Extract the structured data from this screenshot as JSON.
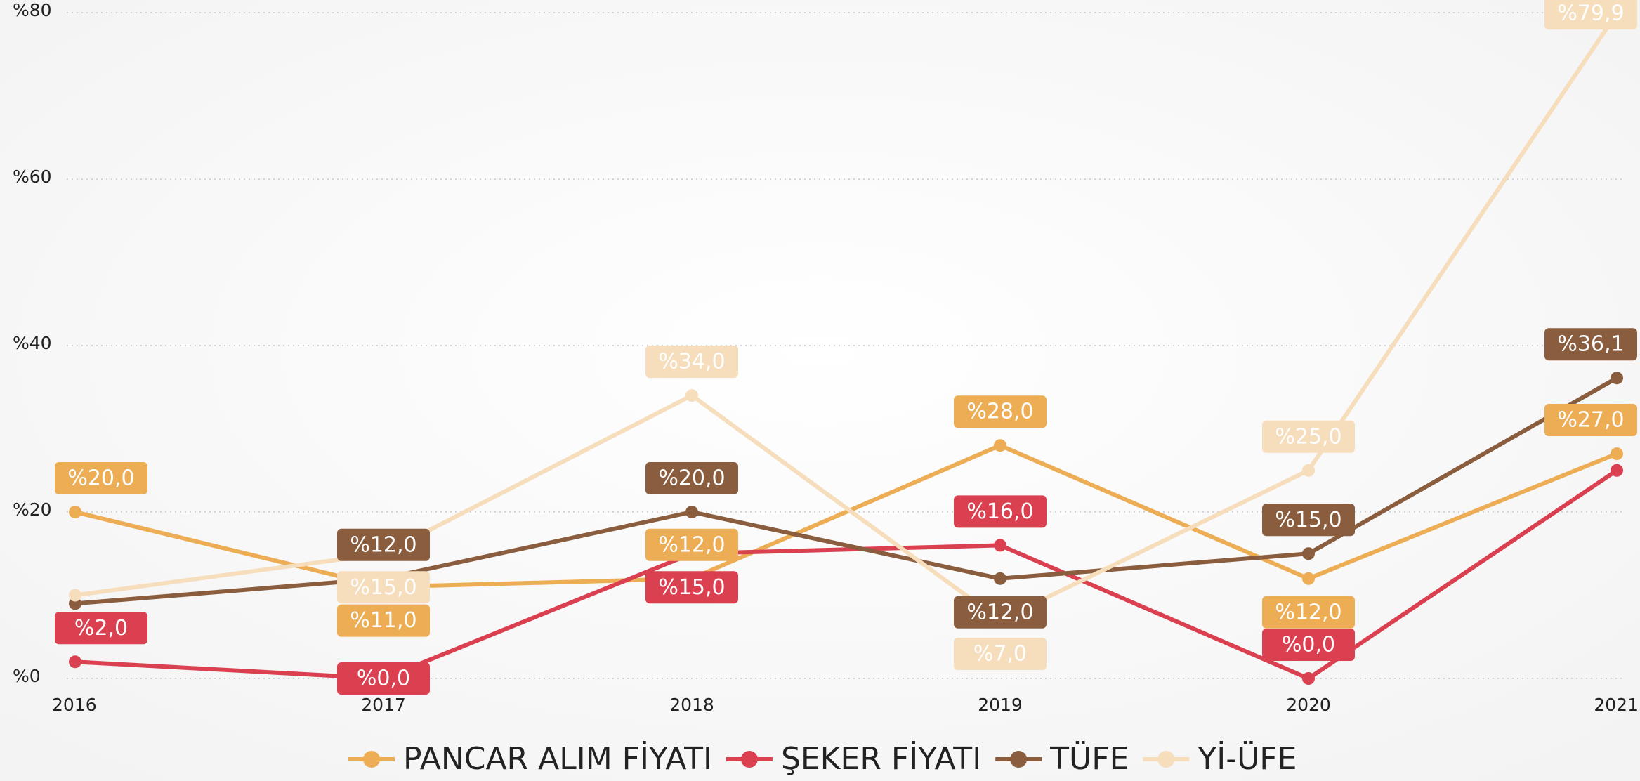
{
  "chart_data": {
    "type": "line",
    "x": [
      "2016",
      "2017",
      "2018",
      "2019",
      "2020",
      "2021"
    ],
    "ylim": [
      0,
      80
    ],
    "yticks": [
      {
        "value": 0,
        "label": "%0"
      },
      {
        "value": 20,
        "label": "%20"
      },
      {
        "value": 40,
        "label": "%40"
      },
      {
        "value": 60,
        "label": "%60"
      },
      {
        "value": 80,
        "label": "%80"
      }
    ],
    "grid": true,
    "legend": "bottom",
    "series": [
      {
        "name": "PANCAR ALIM FİYATI",
        "color": "#ECAD55",
        "values": [
          20,
          11,
          12,
          28,
          12,
          27
        ],
        "value_labels": [
          "%20,0",
          "%11,0",
          "%12,0",
          "%28,0",
          "%12,0",
          "%27,0"
        ]
      },
      {
        "name": "ŞEKER FİYATI",
        "color": "#DA4050",
        "values": [
          2,
          0,
          15,
          16,
          0,
          25
        ],
        "value_labels": [
          "%2,0",
          "%0,0",
          "%15,0",
          "%16,0",
          "%0,0",
          null
        ]
      },
      {
        "name": "TÜFE",
        "color": "#8A5D3E",
        "values": [
          9,
          12,
          20,
          12,
          15,
          36.1
        ],
        "value_labels": [
          null,
          "%12,0",
          "%20,0",
          "%12,0",
          "%15,0",
          "%36,1"
        ]
      },
      {
        "name": "Yİ-ÜFE",
        "color": "#F6DDBC",
        "values": [
          10,
          15,
          34,
          7,
          25,
          79.9
        ],
        "value_labels": [
          null,
          "%15,0",
          "%34,0",
          "%7,0",
          "%25,0",
          "%79,9"
        ]
      }
    ]
  }
}
